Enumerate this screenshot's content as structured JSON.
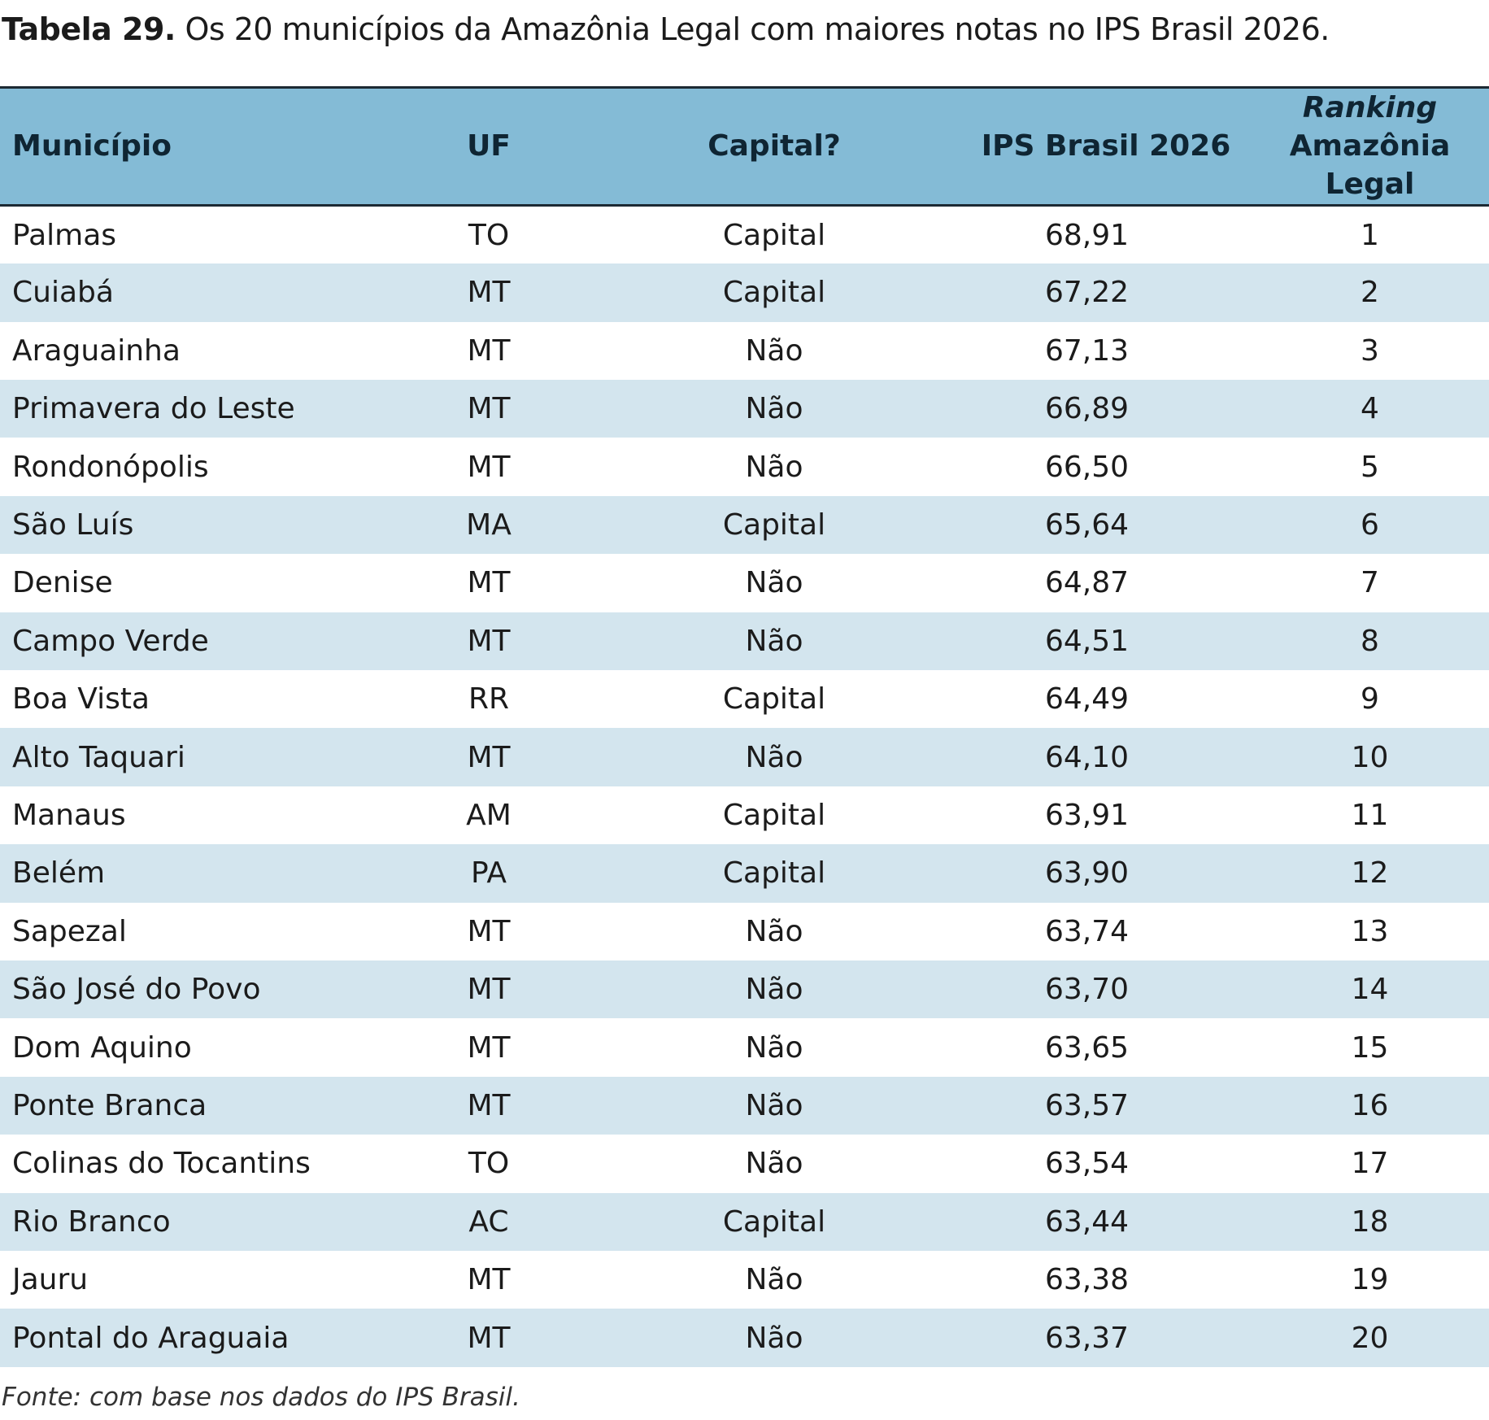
{
  "title": {
    "label": "Tabela 29.",
    "text": "Os 20 municípios da Amazônia Legal com maiores notas no IPS Brasil 2026."
  },
  "table": {
    "columns": [
      "Município",
      "UF",
      "Capital?",
      "IPS Brasil 2026",
      [
        "Ranking",
        "Amazônia Legal"
      ]
    ],
    "rows": [
      [
        "Palmas",
        "TO",
        "Capital",
        "68,91",
        1
      ],
      [
        "Cuiabá",
        "MT",
        "Capital",
        "67,22",
        2
      ],
      [
        "Araguainha",
        "MT",
        "Não",
        "67,13",
        3
      ],
      [
        "Primavera do Leste",
        "MT",
        "Não",
        "66,89",
        4
      ],
      [
        "Rondonópolis",
        "MT",
        "Não",
        "66,50",
        5
      ],
      [
        "São Luís",
        "MA",
        "Capital",
        "65,64",
        6
      ],
      [
        "Denise",
        "MT",
        "Não",
        "64,87",
        7
      ],
      [
        "Campo Verde",
        "MT",
        "Não",
        "64,51",
        8
      ],
      [
        "Boa Vista",
        "RR",
        "Capital",
        "64,49",
        9
      ],
      [
        "Alto Taquari",
        "MT",
        "Não",
        "64,10",
        10
      ],
      [
        "Manaus",
        "AM",
        "Capital",
        "63,91",
        11
      ],
      [
        "Belém",
        "PA",
        "Capital",
        "63,90",
        12
      ],
      [
        "Sapezal",
        "MT",
        "Não",
        "63,74",
        13
      ],
      [
        "São José do Povo",
        "MT",
        "Não",
        "63,70",
        14
      ],
      [
        "Dom Aquino",
        "MT",
        "Não",
        "63,65",
        15
      ],
      [
        "Ponte Branca",
        "MT",
        "Não",
        "63,57",
        16
      ],
      [
        "Colinas do Tocantins",
        "TO",
        "Não",
        "63,54",
        17
      ],
      [
        "Rio Branco",
        "AC",
        "Capital",
        "63,44",
        18
      ],
      [
        "Jauru",
        "MT",
        "Não",
        "63,38",
        19
      ],
      [
        "Pontal do Araguaia",
        "MT",
        "Não",
        "63,37",
        20
      ]
    ]
  },
  "source": "Fonte: com base nos dados do IPS Brasil."
}
